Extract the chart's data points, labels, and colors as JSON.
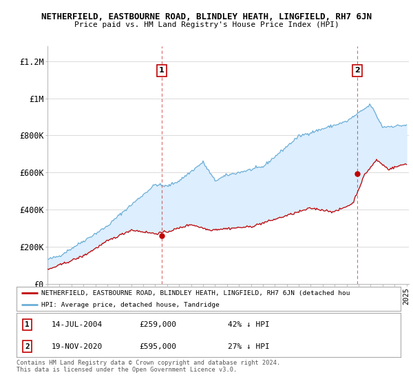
{
  "title": "NETHERFIELD, EASTBOURNE ROAD, BLINDLEY HEATH, LINGFIELD, RH7 6JN",
  "subtitle": "Price paid vs. HM Land Registry's House Price Index (HPI)",
  "ylabel_ticks": [
    "£0",
    "£200K",
    "£400K",
    "£600K",
    "£800K",
    "£1M",
    "£1.2M"
  ],
  "ytick_vals": [
    0,
    200000,
    400000,
    600000,
    800000,
    1000000,
    1200000
  ],
  "ylim": [
    0,
    1280000
  ],
  "xlim_start": 1995.0,
  "xlim_end": 2025.2,
  "hpi_color": "#6baed6",
  "hpi_fill_color": "#ddeeff",
  "price_color": "#c00000",
  "marker1_date": 2004.54,
  "marker1_price": 259000,
  "marker2_date": 2020.89,
  "marker2_price": 595000,
  "legend1_text": "NETHERFIELD, EASTBOURNE ROAD, BLINDLEY HEATH, LINGFIELD, RH7 6JN (detached hou",
  "legend2_text": "HPI: Average price, detached house, Tandridge",
  "note1_date": "14-JUL-2004",
  "note1_price": "£259,000",
  "note1_pct": "42% ↓ HPI",
  "note2_date": "19-NOV-2020",
  "note2_price": "£595,000",
  "note2_pct": "27% ↓ HPI",
  "footer": "Contains HM Land Registry data © Crown copyright and database right 2024.\nThis data is licensed under the Open Government Licence v3.0.",
  "background_color": "#ffffff",
  "grid_color": "#cccccc"
}
